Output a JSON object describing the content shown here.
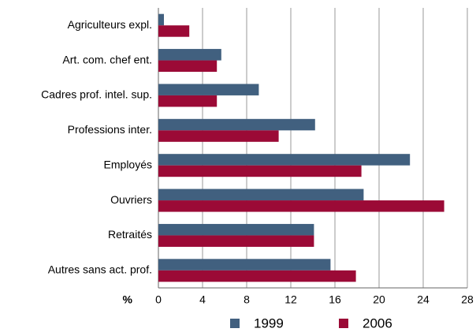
{
  "chart_data": {
    "type": "bar",
    "orientation": "horizontal",
    "categories": [
      "Agriculteurs expl.",
      "Art. com. chef ent.",
      "Cadres prof. intel. sup.",
      "Professions inter.",
      "Employés",
      "Ouvriers",
      "Retraités",
      "Autres sans act. prof."
    ],
    "series": [
      {
        "name": "1999",
        "color": "#41607f",
        "values": [
          0.5,
          5.7,
          9.1,
          14.2,
          22.8,
          18.6,
          14.1,
          15.6
        ]
      },
      {
        "name": "2006",
        "color": "#9b0a36",
        "values": [
          2.8,
          5.3,
          5.3,
          10.9,
          18.4,
          25.9,
          14.1,
          17.9
        ]
      }
    ],
    "xlabel": "%",
    "xlim": [
      0,
      28
    ],
    "xticks": [
      0,
      4,
      8,
      12,
      16,
      20,
      24,
      28
    ],
    "grid": true,
    "legend": "bottom"
  }
}
